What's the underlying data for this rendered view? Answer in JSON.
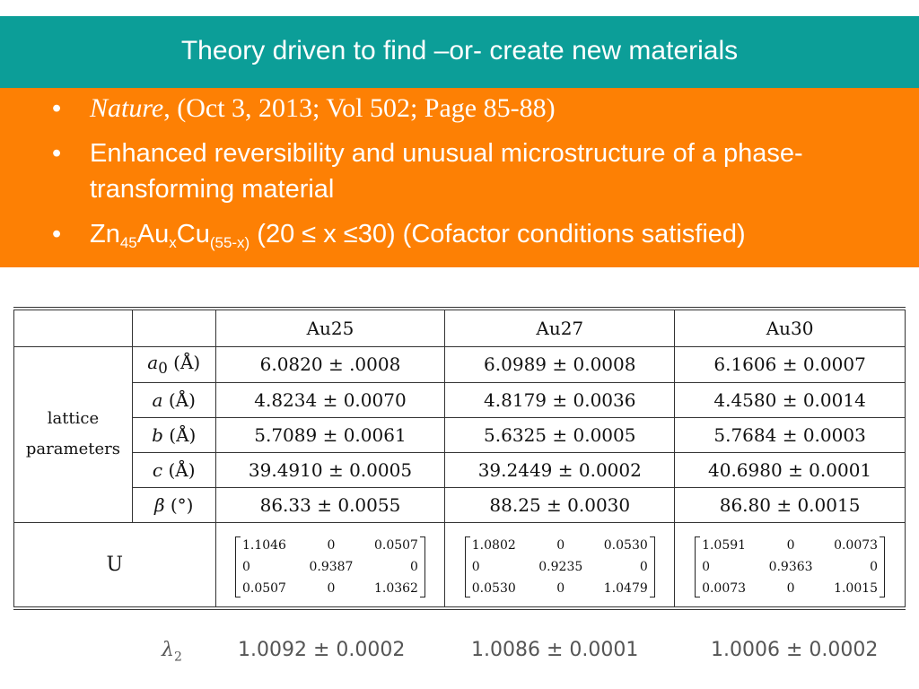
{
  "slide": {
    "title": "Theory driven to find –or- create new materials",
    "bullets": {
      "ref_journal": "Nature",
      "ref_rest": ", (Oct 3,  2013; Vol 502; Page 85-88)",
      "b2": "Enhanced reversibility and unusual microstructure of a phase-transforming material",
      "b3_zn": "Zn",
      "b3_sub45": "45",
      "b3_au": "Au",
      "b3_subx": "x",
      "b3_cu": "Cu",
      "b3_sub55": "(55-x)",
      "b3_range": "  (20 ≤  x  ≤30)  (Cofactor conditions satisfied)"
    },
    "bullet_symbol": "•"
  },
  "table": {
    "headers": [
      "Au25",
      "Au27",
      "Au30"
    ],
    "group_label_line1": "lattice",
    "group_label_line2": "parameters",
    "rows": [
      {
        "sym": "a",
        "sub": "0",
        "unit": " (Å)",
        "values": [
          "6.0820 ± .0008",
          "6.0989 ± 0.0008",
          "6.1606 ± 0.0007"
        ]
      },
      {
        "sym": "a",
        "sub": "",
        "unit": " (Å)",
        "values": [
          "4.8234 ± 0.0070",
          "4.8179 ± 0.0036",
          "4.4580 ± 0.0014"
        ]
      },
      {
        "sym": "b",
        "sub": "",
        "unit": " (Å)",
        "values": [
          "5.7089 ± 0.0061",
          "5.6325 ± 0.0005",
          "5.7684 ± 0.0003"
        ]
      },
      {
        "sym": "c",
        "sub": "",
        "unit": " (Å)",
        "values": [
          "39.4910 ± 0.0005",
          "39.2449 ± 0.0002",
          "40.6980 ± 0.0001"
        ]
      },
      {
        "sym": "β",
        "sub": "",
        "unit": " (°)",
        "values": [
          "86.33 ± 0.0055",
          "88.25 ± 0.0030",
          "86.80 ± 0.0015"
        ]
      }
    ],
    "u_label": "U",
    "matrices": [
      [
        [
          "1.1046",
          "0",
          "0.0507"
        ],
        [
          "0",
          "0.9387",
          "0"
        ],
        [
          "0.0507",
          "0",
          "1.0362"
        ]
      ],
      [
        [
          "1.0802",
          "0",
          "0.0530"
        ],
        [
          "0",
          "0.9235",
          "0"
        ],
        [
          "0.0530",
          "0",
          "1.0479"
        ]
      ],
      [
        [
          "1.0591",
          "0",
          "0.0073"
        ],
        [
          "0",
          "0.9363",
          "0"
        ],
        [
          "0.0073",
          "0",
          "1.0015"
        ]
      ]
    ]
  },
  "lambda": {
    "symbol": "λ",
    "sub": "2",
    "values": [
      "1.0092 ± 0.0002",
      "1.0086 ± 0.0001",
      "1.0006 ± 0.0002"
    ]
  },
  "colors": {
    "title_bar": "#0c9e98",
    "orange_box": "#fd8004",
    "text_on_color": "#ffffff"
  }
}
